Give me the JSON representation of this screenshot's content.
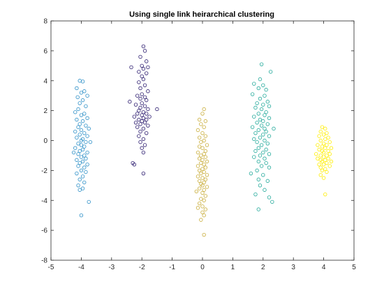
{
  "chart_data": {
    "type": "scatter",
    "title": "Using single link heirarchical clustering",
    "xlabel": "",
    "ylabel": "",
    "xlim": [
      -5,
      5
    ],
    "ylim": [
      -8,
      8
    ],
    "xticks": [
      -5,
      -4,
      -3,
      -2,
      -1,
      0,
      1,
      2,
      3,
      4,
      5
    ],
    "yticks": [
      -8,
      -6,
      -4,
      -2,
      0,
      2,
      4,
      6,
      8
    ],
    "grid": false,
    "legend": "none",
    "marker": "open-circle",
    "series": [
      {
        "color": "#2c8fc7",
        "points": [
          [
            -4.05,
            4.0
          ],
          [
            -3.95,
            3.95
          ],
          [
            -4.15,
            3.5
          ],
          [
            -3.9,
            3.3
          ],
          [
            -4.0,
            3.2
          ],
          [
            -3.8,
            3.0
          ],
          [
            -4.12,
            2.9
          ],
          [
            -3.95,
            2.7
          ],
          [
            -4.05,
            2.5
          ],
          [
            -3.85,
            2.3
          ],
          [
            -4.1,
            2.1
          ],
          [
            -4.2,
            1.9
          ],
          [
            -3.9,
            1.8
          ],
          [
            -4.0,
            1.7
          ],
          [
            -3.8,
            1.5
          ],
          [
            -4.15,
            1.4
          ],
          [
            -3.95,
            1.3
          ],
          [
            -4.05,
            1.1
          ],
          [
            -3.85,
            1.0
          ],
          [
            -4.1,
            0.9
          ],
          [
            -3.75,
            0.8
          ],
          [
            -4.0,
            0.7
          ],
          [
            -4.2,
            0.6
          ],
          [
            -3.9,
            0.5
          ],
          [
            -4.05,
            0.4
          ],
          [
            -3.8,
            0.3
          ],
          [
            -4.15,
            0.2
          ],
          [
            -3.95,
            0.1
          ],
          [
            -4.0,
            0.0
          ],
          [
            -3.85,
            -0.1
          ],
          [
            -4.1,
            -0.2
          ],
          [
            -3.7,
            -0.1
          ],
          [
            -4.0,
            -0.3
          ],
          [
            -3.9,
            -0.4
          ],
          [
            -4.2,
            -0.5
          ],
          [
            -3.95,
            -0.6
          ],
          [
            -4.05,
            -0.7
          ],
          [
            -3.8,
            -0.8
          ],
          [
            -4.25,
            -0.8
          ],
          [
            -4.1,
            -0.9
          ],
          [
            -3.9,
            -1.0
          ],
          [
            -4.0,
            -1.1
          ],
          [
            -3.85,
            -1.2
          ],
          [
            -4.15,
            -1.3
          ],
          [
            -3.95,
            -1.4
          ],
          [
            -4.05,
            -1.5
          ],
          [
            -3.8,
            -1.6
          ],
          [
            -4.1,
            -1.7
          ],
          [
            -3.9,
            -1.8
          ],
          [
            -4.0,
            -2.0
          ],
          [
            -3.85,
            -2.1
          ],
          [
            -4.15,
            -2.2
          ],
          [
            -3.95,
            -2.4
          ],
          [
            -4.05,
            -2.6
          ],
          [
            -3.9,
            -2.8
          ],
          [
            -4.1,
            -3.0
          ],
          [
            -3.95,
            -3.2
          ],
          [
            -4.05,
            -3.3
          ],
          [
            -3.75,
            -4.1
          ],
          [
            -4.0,
            -5.0
          ]
        ]
      },
      {
        "color": "#2a1a6e",
        "points": [
          [
            -1.95,
            6.3
          ],
          [
            -1.9,
            6.0
          ],
          [
            -2.05,
            5.6
          ],
          [
            -1.85,
            5.3
          ],
          [
            -2.0,
            5.0
          ],
          [
            -1.8,
            4.9
          ],
          [
            -2.35,
            4.9
          ],
          [
            -1.95,
            4.8
          ],
          [
            -2.1,
            4.6
          ],
          [
            -1.85,
            4.5
          ],
          [
            -2.0,
            4.3
          ],
          [
            -1.95,
            4.1
          ],
          [
            -2.1,
            3.9
          ],
          [
            -1.9,
            3.7
          ],
          [
            -2.05,
            3.5
          ],
          [
            -1.8,
            3.3
          ],
          [
            -2.0,
            3.1
          ],
          [
            -2.15,
            3.0
          ],
          [
            -1.9,
            2.9
          ],
          [
            -2.05,
            2.8
          ],
          [
            -1.85,
            2.7
          ],
          [
            -2.4,
            2.6
          ],
          [
            -2.0,
            2.5
          ],
          [
            -2.2,
            2.4
          ],
          [
            -1.9,
            2.3
          ],
          [
            -2.05,
            2.2
          ],
          [
            -1.8,
            2.1
          ],
          [
            -2.1,
            2.0
          ],
          [
            -1.5,
            2.1
          ],
          [
            -1.95,
            1.9
          ],
          [
            -2.15,
            1.8
          ],
          [
            -1.85,
            1.8
          ],
          [
            -2.0,
            1.7
          ],
          [
            -2.25,
            1.6
          ],
          [
            -1.75,
            1.6
          ],
          [
            -1.95,
            1.5
          ],
          [
            -2.1,
            1.4
          ],
          [
            -1.85,
            1.4
          ],
          [
            -2.0,
            1.3
          ],
          [
            -2.2,
            1.2
          ],
          [
            -1.9,
            1.2
          ],
          [
            -2.05,
            1.1
          ],
          [
            -1.8,
            1.0
          ],
          [
            -2.15,
            0.9
          ],
          [
            -1.95,
            0.8
          ],
          [
            -2.05,
            0.6
          ],
          [
            -1.85,
            0.5
          ],
          [
            -2.1,
            0.3
          ],
          [
            -1.95,
            0.1
          ],
          [
            -2.05,
            -0.1
          ],
          [
            -1.9,
            -0.3
          ],
          [
            -2.0,
            -0.5
          ],
          [
            -1.95,
            -0.8
          ],
          [
            -2.3,
            -1.5
          ],
          [
            -2.25,
            -1.6
          ],
          [
            -1.95,
            -2.2
          ]
        ]
      },
      {
        "color": "#c9ad3a",
        "points": [
          [
            0.05,
            2.1
          ],
          [
            0.0,
            1.8
          ],
          [
            -0.1,
            1.4
          ],
          [
            0.1,
            1.3
          ],
          [
            -0.05,
            1.1
          ],
          [
            0.05,
            0.9
          ],
          [
            -0.15,
            0.7
          ],
          [
            0.0,
            0.5
          ],
          [
            0.1,
            0.3
          ],
          [
            -0.1,
            0.2
          ],
          [
            0.05,
            0.0
          ],
          [
            -0.05,
            -0.1
          ],
          [
            0.15,
            -0.3
          ],
          [
            -0.1,
            -0.4
          ],
          [
            0.0,
            -0.5
          ],
          [
            0.1,
            -0.7
          ],
          [
            -0.15,
            -0.8
          ],
          [
            0.05,
            -0.9
          ],
          [
            -0.05,
            -1.0
          ],
          [
            0.1,
            -1.1
          ],
          [
            -0.1,
            -1.2
          ],
          [
            0.0,
            -1.3
          ],
          [
            0.15,
            -1.4
          ],
          [
            -0.05,
            -1.5
          ],
          [
            0.05,
            -1.6
          ],
          [
            -0.15,
            -1.7
          ],
          [
            0.1,
            -1.8
          ],
          [
            0.0,
            -1.9
          ],
          [
            -0.1,
            -2.0
          ],
          [
            0.05,
            -2.1
          ],
          [
            -0.05,
            -2.2
          ],
          [
            0.15,
            -2.3
          ],
          [
            -0.15,
            -2.4
          ],
          [
            0.0,
            -2.5
          ],
          [
            0.1,
            -2.6
          ],
          [
            -0.1,
            -2.7
          ],
          [
            0.05,
            -2.8
          ],
          [
            -0.05,
            -2.9
          ],
          [
            0.0,
            -3.0
          ],
          [
            0.15,
            -3.1
          ],
          [
            -0.1,
            -3.2
          ],
          [
            0.05,
            -3.3
          ],
          [
            -0.2,
            -3.4
          ],
          [
            0.0,
            -3.5
          ],
          [
            0.1,
            -3.7
          ],
          [
            -0.05,
            -3.9
          ],
          [
            0.05,
            -4.0
          ],
          [
            -0.1,
            -4.2
          ],
          [
            0.0,
            -4.4
          ],
          [
            0.1,
            -4.6
          ],
          [
            -0.15,
            -4.5
          ],
          [
            0.0,
            -4.8
          ],
          [
            0.05,
            -5.0
          ],
          [
            -0.05,
            -5.3
          ],
          [
            0.05,
            -6.3
          ]
        ]
      },
      {
        "color": "#22a99a",
        "points": [
          [
            1.95,
            5.1
          ],
          [
            2.25,
            4.6
          ],
          [
            1.9,
            4.1
          ],
          [
            1.7,
            3.8
          ],
          [
            2.0,
            3.7
          ],
          [
            1.85,
            3.5
          ],
          [
            2.1,
            3.4
          ],
          [
            1.65,
            3.1
          ],
          [
            2.05,
            3.0
          ],
          [
            1.9,
            2.8
          ],
          [
            2.15,
            2.6
          ],
          [
            1.8,
            2.5
          ],
          [
            2.0,
            2.4
          ],
          [
            2.2,
            2.3
          ],
          [
            1.75,
            2.2
          ],
          [
            1.95,
            2.1
          ],
          [
            2.1,
            1.9
          ],
          [
            1.85,
            1.8
          ],
          [
            2.05,
            1.7
          ],
          [
            1.7,
            1.6
          ],
          [
            2.2,
            1.5
          ],
          [
            1.9,
            1.4
          ],
          [
            2.0,
            1.3
          ],
          [
            1.8,
            1.2
          ],
          [
            2.15,
            1.1
          ],
          [
            1.95,
            1.0
          ],
          [
            1.65,
            0.9
          ],
          [
            2.05,
            0.8
          ],
          [
            2.35,
            0.8
          ],
          [
            1.85,
            0.7
          ],
          [
            2.1,
            0.6
          ],
          [
            1.75,
            0.5
          ],
          [
            2.0,
            0.4
          ],
          [
            2.2,
            0.3
          ],
          [
            1.9,
            0.2
          ],
          [
            1.7,
            0.1
          ],
          [
            2.05,
            0.0
          ],
          [
            1.8,
            -0.1
          ],
          [
            2.15,
            -0.2
          ],
          [
            1.95,
            -0.3
          ],
          [
            1.85,
            -0.5
          ],
          [
            2.1,
            -0.6
          ],
          [
            1.75,
            -0.7
          ],
          [
            2.0,
            -0.8
          ],
          [
            2.2,
            -0.9
          ],
          [
            1.9,
            -1.0
          ],
          [
            1.7,
            -1.1
          ],
          [
            2.05,
            -1.2
          ],
          [
            1.85,
            -1.4
          ],
          [
            2.1,
            -1.5
          ],
          [
            1.95,
            -1.7
          ],
          [
            2.2,
            -1.8
          ],
          [
            1.8,
            -2.0
          ],
          [
            1.6,
            -2.2
          ],
          [
            2.0,
            -2.3
          ],
          [
            1.85,
            -2.6
          ],
          [
            2.15,
            -2.7
          ],
          [
            1.9,
            -3.0
          ],
          [
            2.05,
            -3.3
          ],
          [
            1.75,
            -3.6
          ],
          [
            2.2,
            -3.8
          ],
          [
            2.3,
            -4.1
          ],
          [
            1.85,
            -4.6
          ]
        ]
      },
      {
        "color": "#ffee00",
        "points": [
          [
            3.95,
            0.9
          ],
          [
            4.05,
            0.8
          ],
          [
            3.9,
            0.6
          ],
          [
            4.1,
            0.5
          ],
          [
            4.0,
            0.4
          ],
          [
            3.85,
            0.3
          ],
          [
            4.15,
            0.2
          ],
          [
            4.05,
            0.1
          ],
          [
            3.9,
            0.0
          ],
          [
            4.2,
            -0.1
          ],
          [
            4.0,
            -0.2
          ],
          [
            3.8,
            -0.3
          ],
          [
            4.1,
            -0.3
          ],
          [
            3.95,
            -0.4
          ],
          [
            4.25,
            -0.5
          ],
          [
            4.05,
            -0.5
          ],
          [
            3.85,
            -0.6
          ],
          [
            4.15,
            -0.7
          ],
          [
            3.95,
            -0.7
          ],
          [
            4.0,
            -0.8
          ],
          [
            3.75,
            -0.9
          ],
          [
            4.2,
            -0.9
          ],
          [
            4.1,
            -1.0
          ],
          [
            3.9,
            -1.0
          ],
          [
            4.0,
            -1.1
          ],
          [
            3.8,
            -1.2
          ],
          [
            4.15,
            -1.2
          ],
          [
            4.05,
            -1.3
          ],
          [
            3.9,
            -1.3
          ],
          [
            4.25,
            -1.4
          ],
          [
            3.95,
            -1.4
          ],
          [
            4.1,
            -1.5
          ],
          [
            3.85,
            -1.6
          ],
          [
            4.0,
            -1.6
          ],
          [
            4.2,
            -1.7
          ],
          [
            3.9,
            -1.8
          ],
          [
            4.05,
            -1.9
          ],
          [
            3.95,
            -2.0
          ],
          [
            4.1,
            -2.1
          ],
          [
            3.9,
            -2.3
          ],
          [
            4.0,
            -2.5
          ],
          [
            4.05,
            -3.6
          ]
        ]
      }
    ]
  }
}
